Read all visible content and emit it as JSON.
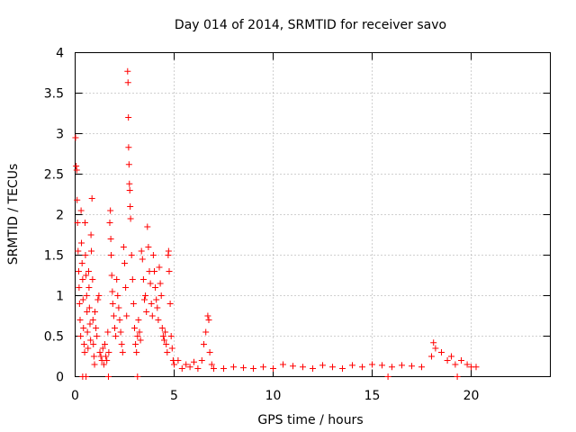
{
  "chart_data": {
    "type": "scatter",
    "title": "Day 014 of 2014, SRMTID for receiver savo",
    "xlabel": "GPS time / hours",
    "ylabel": "SRMTID / TECUs",
    "xlim": [
      0,
      24
    ],
    "ylim": [
      0,
      4
    ],
    "x_ticks": [
      0,
      5,
      10,
      15,
      20
    ],
    "y_ticks": [
      0,
      0.5,
      1,
      1.5,
      2,
      2.5,
      3,
      3.5,
      4
    ],
    "x_tick_labels": [
      "0",
      "5",
      "10",
      "15",
      "20"
    ],
    "y_tick_labels": [
      "0",
      "0.5",
      "1",
      "1.5",
      "2",
      "2.5",
      "3",
      "3.5",
      "4"
    ],
    "grid": true,
    "marker": "plus",
    "series_color": "#ff0000",
    "series": [
      {
        "name": "SRMTID",
        "points": [
          [
            0.02,
            2.95
          ],
          [
            0.05,
            2.6
          ],
          [
            0.08,
            2.55
          ],
          [
            0.1,
            2.18
          ],
          [
            0.12,
            1.9
          ],
          [
            0.15,
            1.55
          ],
          [
            0.18,
            1.3
          ],
          [
            0.2,
            1.1
          ],
          [
            0.22,
            0.9
          ],
          [
            0.25,
            0.7
          ],
          [
            0.28,
            0.5
          ],
          [
            0.3,
            2.05
          ],
          [
            0.32,
            1.65
          ],
          [
            0.35,
            1.4
          ],
          [
            0.38,
            1.2
          ],
          [
            0.4,
            0.95
          ],
          [
            0.42,
            0.6
          ],
          [
            0.45,
            0.4
          ],
          [
            0.48,
            0.3
          ],
          [
            0.5,
            1.9
          ],
          [
            0.52,
            1.5
          ],
          [
            0.55,
            1.25
          ],
          [
            0.58,
            1.0
          ],
          [
            0.6,
            0.8
          ],
          [
            0.62,
            0.55
          ],
          [
            0.65,
            0.35
          ],
          [
            0.68,
            1.3
          ],
          [
            0.7,
            1.1
          ],
          [
            0.72,
            0.85
          ],
          [
            0.75,
            0.65
          ],
          [
            0.78,
            0.45
          ],
          [
            0.8,
            1.75
          ],
          [
            0.82,
            1.55
          ],
          [
            0.85,
            2.2
          ],
          [
            0.88,
            1.2
          ],
          [
            0.9,
            0.7
          ],
          [
            0.92,
            0.4
          ],
          [
            0.95,
            0.25
          ],
          [
            0.98,
            0.15
          ],
          [
            1.0,
            0.8
          ],
          [
            1.05,
            0.6
          ],
          [
            1.1,
            0.5
          ],
          [
            1.15,
            0.95
          ],
          [
            1.2,
            1.0
          ],
          [
            1.25,
            0.3
          ],
          [
            1.3,
            0.25
          ],
          [
            1.35,
            0.2
          ],
          [
            1.4,
            0.35
          ],
          [
            1.45,
            0.15
          ],
          [
            1.5,
            0.4
          ],
          [
            1.55,
            0.25
          ],
          [
            1.6,
            0.2
          ],
          [
            1.65,
            0.55
          ],
          [
            1.7,
            0.3
          ],
          [
            1.75,
            1.9
          ],
          [
            1.78,
            2.05
          ],
          [
            1.8,
            1.7
          ],
          [
            1.82,
            1.5
          ],
          [
            1.85,
            1.25
          ],
          [
            1.88,
            1.05
          ],
          [
            1.9,
            0.9
          ],
          [
            1.95,
            0.75
          ],
          [
            2.0,
            0.6
          ],
          [
            2.05,
            0.5
          ],
          [
            2.1,
            1.2
          ],
          [
            2.15,
            1.0
          ],
          [
            2.2,
            0.85
          ],
          [
            2.25,
            0.7
          ],
          [
            2.3,
            0.55
          ],
          [
            2.35,
            0.4
          ],
          [
            2.4,
            0.3
          ],
          [
            2.45,
            1.6
          ],
          [
            2.5,
            1.4
          ],
          [
            2.55,
            1.1
          ],
          [
            2.6,
            0.75
          ],
          [
            2.65,
            3.77
          ],
          [
            2.67,
            3.63
          ],
          [
            2.69,
            3.2
          ],
          [
            2.7,
            2.83
          ],
          [
            2.72,
            2.62
          ],
          [
            2.74,
            2.38
          ],
          [
            2.76,
            2.3
          ],
          [
            2.78,
            2.1
          ],
          [
            2.8,
            1.95
          ],
          [
            2.85,
            1.5
          ],
          [
            2.9,
            1.2
          ],
          [
            2.95,
            0.9
          ],
          [
            3.0,
            0.6
          ],
          [
            3.05,
            0.4
          ],
          [
            3.1,
            0.3
          ],
          [
            3.15,
            0.5
          ],
          [
            3.2,
            0.7
          ],
          [
            3.25,
            0.55
          ],
          [
            3.3,
            0.45
          ],
          [
            3.35,
            1.55
          ],
          [
            3.4,
            1.45
          ],
          [
            3.45,
            1.2
          ],
          [
            3.5,
            0.95
          ],
          [
            3.55,
            1.0
          ],
          [
            3.6,
            0.8
          ],
          [
            3.65,
            1.85
          ],
          [
            3.7,
            1.6
          ],
          [
            3.75,
            1.3
          ],
          [
            3.8,
            1.15
          ],
          [
            3.85,
            0.9
          ],
          [
            3.9,
            0.75
          ],
          [
            3.95,
            1.5
          ],
          [
            4.0,
            1.3
          ],
          [
            4.05,
            1.1
          ],
          [
            4.1,
            0.95
          ],
          [
            4.15,
            0.85
          ],
          [
            4.2,
            0.7
          ],
          [
            4.25,
            1.35
          ],
          [
            4.3,
            1.15
          ],
          [
            4.35,
            1.0
          ],
          [
            4.4,
            0.6
          ],
          [
            4.45,
            0.5
          ],
          [
            4.5,
            0.45
          ],
          [
            4.55,
            0.55
          ],
          [
            4.6,
            0.4
          ],
          [
            4.65,
            0.3
          ],
          [
            4.7,
            1.5
          ],
          [
            4.72,
            1.55
          ],
          [
            4.75,
            1.3
          ],
          [
            4.8,
            0.9
          ],
          [
            4.85,
            0.5
          ],
          [
            4.9,
            0.35
          ],
          [
            4.95,
            0.2
          ],
          [
            5.0,
            0.15
          ],
          [
            5.2,
            0.2
          ],
          [
            5.4,
            0.1
          ],
          [
            5.6,
            0.15
          ],
          [
            5.8,
            0.12
          ],
          [
            6.0,
            0.18
          ],
          [
            6.2,
            0.1
          ],
          [
            6.4,
            0.2
          ],
          [
            6.5,
            0.4
          ],
          [
            6.6,
            0.55
          ],
          [
            6.7,
            0.75
          ],
          [
            6.75,
            0.7
          ],
          [
            6.8,
            0.3
          ],
          [
            6.9,
            0.15
          ],
          [
            7.0,
            0.1
          ],
          [
            7.5,
            0.1
          ],
          [
            8.0,
            0.12
          ],
          [
            8.5,
            0.11
          ],
          [
            9.0,
            0.1
          ],
          [
            9.5,
            0.12
          ],
          [
            10.0,
            0.1
          ],
          [
            10.5,
            0.15
          ],
          [
            11.0,
            0.13
          ],
          [
            11.5,
            0.12
          ],
          [
            12.0,
            0.1
          ],
          [
            12.5,
            0.14
          ],
          [
            13.0,
            0.12
          ],
          [
            13.5,
            0.1
          ],
          [
            14.0,
            0.14
          ],
          [
            14.5,
            0.12
          ],
          [
            15.0,
            0.15
          ],
          [
            15.5,
            0.14
          ],
          [
            16.0,
            0.12
          ],
          [
            16.5,
            0.14
          ],
          [
            17.0,
            0.13
          ],
          [
            17.5,
            0.12
          ],
          [
            18.0,
            0.25
          ],
          [
            18.1,
            0.42
          ],
          [
            18.2,
            0.35
          ],
          [
            18.5,
            0.3
          ],
          [
            18.8,
            0.2
          ],
          [
            19.0,
            0.25
          ],
          [
            19.2,
            0.15
          ],
          [
            19.5,
            0.2
          ],
          [
            19.8,
            0.15
          ],
          [
            20.0,
            0.12
          ],
          [
            20.25,
            0.12
          ],
          [
            0.38,
            0.0
          ],
          [
            0.55,
            0.0
          ],
          [
            1.68,
            0.0
          ],
          [
            3.15,
            0.0
          ],
          [
            15.8,
            0.0
          ],
          [
            19.3,
            0.0
          ]
        ]
      }
    ]
  }
}
